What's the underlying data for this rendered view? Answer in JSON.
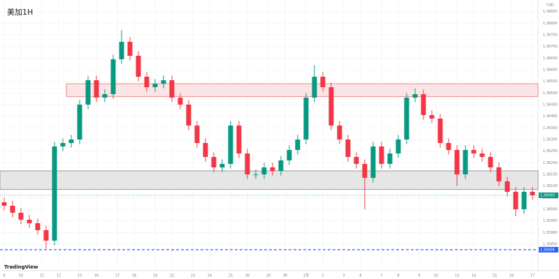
{
  "chart_data": {
    "type": "candlestick",
    "title": "美加1H",
    "axis_title": "CAD",
    "logo": "TradingView",
    "up_color": "#089981",
    "down_color": "#f23645",
    "ylim": [
      1.35736,
      1.369
    ],
    "yticks": [
      {
        "value": 1.3585,
        "label": "1.35850"
      },
      {
        "value": 1.359,
        "label": "1.35900"
      },
      {
        "value": 1.3595,
        "label": "1.35950"
      },
      {
        "value": 1.36,
        "label": "1.36000"
      },
      {
        "value": 1.3605,
        "label": "1.36050"
      },
      {
        "value": 1.361,
        "label": "1.36100"
      },
      {
        "value": 1.3615,
        "label": "1.36150"
      },
      {
        "value": 1.362,
        "label": "1.36200"
      },
      {
        "value": 1.3625,
        "label": "1.36250"
      },
      {
        "value": 1.363,
        "label": "1.36300"
      },
      {
        "value": 1.3635,
        "label": "1.36350"
      },
      {
        "value": 1.364,
        "label": "1.36400"
      },
      {
        "value": 1.3645,
        "label": "1.36450"
      },
      {
        "value": 1.365,
        "label": "1.36500"
      },
      {
        "value": 1.3655,
        "label": "1.36550"
      },
      {
        "value": 1.366,
        "label": "1.36600"
      },
      {
        "value": 1.3665,
        "label": "1.36650"
      },
      {
        "value": 1.367,
        "label": "1.36700"
      },
      {
        "value": 1.3675,
        "label": "1.36750"
      },
      {
        "value": 1.368,
        "label": "1.36800"
      },
      {
        "value": 1.3685,
        "label": "1.36850"
      }
    ],
    "xticks": [
      {
        "value": 0,
        "label": "9"
      },
      {
        "value": 2,
        "label": "10"
      },
      {
        "value": 4.5,
        "label": "11"
      },
      {
        "value": 6.5,
        "label": "12"
      },
      {
        "value": 9,
        "label": "15"
      },
      {
        "value": 11,
        "label": "16"
      },
      {
        "value": 13.5,
        "label": "17"
      },
      {
        "value": 15.5,
        "label": "18"
      },
      {
        "value": 18,
        "label": "19"
      },
      {
        "value": 20,
        "label": "22"
      },
      {
        "value": 22.5,
        "label": "23"
      },
      {
        "value": 24.5,
        "label": "24"
      },
      {
        "value": 27,
        "label": "25"
      },
      {
        "value": 29,
        "label": "26"
      },
      {
        "value": 31.5,
        "label": "29"
      },
      {
        "value": 33.5,
        "label": "30"
      },
      {
        "value": 36,
        "label": "1月"
      },
      {
        "value": 38,
        "label": "2"
      },
      {
        "value": 40.5,
        "label": "3"
      },
      {
        "value": 42.5,
        "label": "6"
      },
      {
        "value": 45,
        "label": "7"
      },
      {
        "value": 47,
        "label": "8"
      },
      {
        "value": 49.5,
        "label": "9"
      },
      {
        "value": 51.5,
        "label": "10"
      },
      {
        "value": 54,
        "label": "13"
      },
      {
        "value": 56,
        "label": "14"
      },
      {
        "value": 58.5,
        "label": "15"
      },
      {
        "value": 60.5,
        "label": "16"
      },
      {
        "value": 63,
        "label": "17"
      }
    ],
    "open": [
      1.3603,
      1.36015,
      1.35985,
      1.35955,
      1.3594,
      1.3591,
      1.35865,
      1.3627,
      1.36285,
      1.363,
      1.3645,
      1.36555,
      1.3648,
      1.36495,
      1.36645,
      1.3672,
      1.3666,
      1.3657,
      1.36525,
      1.3654,
      1.36555,
      1.3648,
      1.3645,
      1.3636,
      1.36285,
      1.36225,
      1.3618,
      1.36195,
      1.3636,
      1.3624,
      1.3615,
      1.3615,
      1.3618,
      1.36165,
      1.3621,
      1.36255,
      1.363,
      1.3648,
      1.3657,
      1.36525,
      1.3636,
      1.363,
      1.36225,
      1.36195,
      1.36135,
      1.3627,
      1.36195,
      1.3624,
      1.363,
      1.3648,
      1.36495,
      1.36405,
      1.3639,
      1.36285,
      1.36255,
      1.3615,
      1.36255,
      1.3624,
      1.36225,
      1.3618,
      1.3612,
      1.36075,
      1.36,
      1.36075
    ],
    "high": [
      1.3605,
      1.36035,
      1.36005,
      1.35975,
      1.3596,
      1.3593,
      1.3629,
      1.36305,
      1.3632,
      1.3647,
      1.36575,
      1.36575,
      1.36515,
      1.36665,
      1.3677,
      1.3674,
      1.3668,
      1.3659,
      1.3656,
      1.36575,
      1.36575,
      1.365,
      1.3647,
      1.3638,
      1.36305,
      1.36245,
      1.36215,
      1.3638,
      1.3638,
      1.3626,
      1.3617,
      1.362,
      1.362,
      1.3623,
      1.36275,
      1.3632,
      1.365,
      1.3662,
      1.3659,
      1.36545,
      1.3638,
      1.3632,
      1.36245,
      1.36215,
      1.3629,
      1.3629,
      1.3626,
      1.3632,
      1.365,
      1.3652,
      1.36515,
      1.36425,
      1.3641,
      1.36305,
      1.36275,
      1.36275,
      1.36275,
      1.3626,
      1.36245,
      1.362,
      1.3614,
      1.36095,
      1.36095,
      1.36095
    ],
    "low": [
      1.35995,
      1.35965,
      1.35935,
      1.3592,
      1.3589,
      1.3583,
      1.35845,
      1.3625,
      1.36265,
      1.3628,
      1.3643,
      1.3646,
      1.3646,
      1.36475,
      1.36625,
      1.3664,
      1.3655,
      1.36505,
      1.36505,
      1.3652,
      1.3646,
      1.3643,
      1.3634,
      1.36265,
      1.36205,
      1.3616,
      1.3616,
      1.36175,
      1.3622,
      1.3613,
      1.3613,
      1.3613,
      1.36145,
      1.36145,
      1.3619,
      1.36235,
      1.3628,
      1.3646,
      1.36505,
      1.3634,
      1.3628,
      1.36205,
      1.36175,
      1.36,
      1.36115,
      1.36175,
      1.36175,
      1.3622,
      1.3628,
      1.3646,
      1.36385,
      1.3637,
      1.36265,
      1.36235,
      1.361,
      1.3613,
      1.3622,
      1.36205,
      1.3616,
      1.361,
      1.36055,
      1.3597,
      1.3598,
      1.3604
    ],
    "close": [
      1.36015,
      1.35985,
      1.35955,
      1.3594,
      1.3591,
      1.35865,
      1.3627,
      1.36285,
      1.363,
      1.3645,
      1.36555,
      1.3648,
      1.36495,
      1.36645,
      1.3672,
      1.3666,
      1.3657,
      1.36525,
      1.3654,
      1.36555,
      1.3648,
      1.3645,
      1.3636,
      1.36285,
      1.36225,
      1.3618,
      1.36195,
      1.3636,
      1.3624,
      1.3615,
      1.3615,
      1.3618,
      1.36165,
      1.3621,
      1.36255,
      1.363,
      1.3648,
      1.3657,
      1.36525,
      1.3636,
      1.363,
      1.36225,
      1.36195,
      1.36135,
      1.3627,
      1.36195,
      1.3624,
      1.363,
      1.3648,
      1.36495,
      1.36405,
      1.3639,
      1.36285,
      1.36255,
      1.3615,
      1.36255,
      1.3624,
      1.36225,
      1.3618,
      1.3612,
      1.36075,
      1.36,
      1.36075,
      1.3606
    ],
    "zones": [
      {
        "from": 1.36485,
        "to": 1.3654,
        "color": "#fce4e6",
        "border": "#e57373"
      },
      {
        "from": 1.36085,
        "to": 1.36165,
        "color": "#e6e6e6",
        "border": "#888888"
      }
    ],
    "level": {
      "value": 1.35826,
      "label": "1.35826",
      "color": "#2962ff"
    },
    "price_tag": {
      "value": 1.3606,
      "label": "1.36060"
    }
  }
}
